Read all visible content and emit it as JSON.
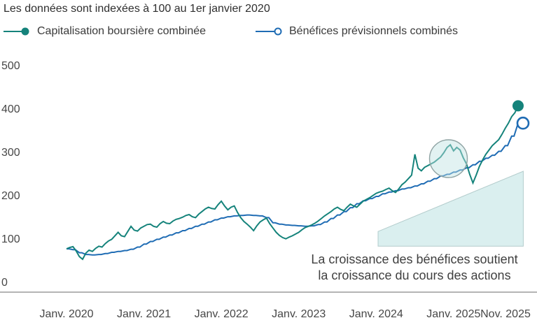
{
  "title": "Les données sont indexées à 100 au 1er janvier 2020",
  "legend": {
    "market_cap": {
      "label": "Capitalisation boursière combinée",
      "marker": "filled-circle"
    },
    "earnings": {
      "label": "Bénéfices prévisionnels combinés",
      "marker": "open-circle"
    }
  },
  "colors": {
    "market_cap": "#15837B",
    "earnings": "#1F6CB4",
    "fill_light": "#DAEFEF",
    "fill_stroke": "#B3CCCC",
    "highlight_fill": "rgba(190,227,227,0.45)",
    "circle_stroke": "#8FA3A3",
    "axis_line": "#B4B4B4",
    "text_dark": "#3A3A3A",
    "axis_text": "#474747"
  },
  "chart_data": {
    "type": "line",
    "title": "Les données sont indexées à 100 au 1er janvier 2020",
    "index_base": 100,
    "index_base_date": "1er janvier 2020",
    "x_axis": {
      "tick_months": [
        0,
        12,
        24,
        36,
        48,
        60,
        70
      ],
      "tick_labels": [
        "Janv. 2020",
        "Janv. 2021",
        "Janv. 2022",
        "Janv. 2023",
        "Janv. 2024",
        "Janv. 2025",
        "Nov. 2025"
      ]
    },
    "y_axis": {
      "ticks": [
        500,
        400,
        300,
        200,
        100,
        0
      ],
      "tick_labels": [
        "500",
        "400",
        "300",
        "200",
        "100",
        "0"
      ],
      "range": [
        0,
        500
      ],
      "gridlines": false
    },
    "legend_position": "top",
    "series": [
      {
        "name": "Capitalisation boursière combinée",
        "key": "market_cap",
        "marker": "filled-circle",
        "x_step_months": 0.5,
        "end_value": 430,
        "values": [
          100,
          103,
          105,
          95,
          82,
          76,
          90,
          97,
          94,
          101,
          106,
          104,
          112,
          118,
          122,
          130,
          138,
          130,
          128,
          140,
          152,
          143,
          141,
          148,
          152,
          156,
          157,
          152,
          150,
          158,
          163,
          159,
          158,
          164,
          168,
          170,
          173,
          177,
          179,
          174,
          172,
          180,
          186,
          192,
          196,
          193,
          192,
          202,
          210,
          199,
          190,
          196,
          199,
          184,
          172,
          163,
          157,
          150,
          142,
          153,
          162,
          167,
          171,
          158,
          148,
          138,
          131,
          126,
          123,
          127,
          130,
          134,
          138,
          144,
          149,
          152,
          155,
          159,
          164,
          170,
          176,
          181,
          186,
          192,
          196,
          191,
          188,
          196,
          203,
          199,
          196,
          203,
          210,
          214,
          218,
          223,
          228,
          231,
          233,
          237,
          240,
          234,
          230,
          238,
          248,
          254,
          262,
          270,
          318,
          286,
          280,
          288,
          292,
          296,
          300,
          306,
          312,
          322,
          334,
          340,
          326,
          334,
          328,
          310,
          296,
          272,
          252,
          270,
          290,
          305,
          318,
          328,
          338,
          345,
          352,
          364,
          378,
          390,
          405,
          414,
          430
        ]
      },
      {
        "name": "Bénéfices prévisionnels combinés",
        "key": "earnings",
        "marker": "open-circle",
        "x_step_months": 1,
        "end_value": 390,
        "values": [
          100,
          98,
          91,
          87,
          86,
          87,
          89,
          92,
          94,
          96,
          99,
          104,
          111,
          117,
          122,
          127,
          132,
          137,
          142,
          147,
          152,
          157,
          162,
          167,
          171,
          174,
          176,
          177,
          178,
          177,
          176,
          172,
          160,
          157,
          155,
          154,
          153,
          152,
          153,
          156,
          162,
          170,
          178,
          186,
          195,
          204,
          211,
          216,
          221,
          227,
          231,
          234,
          238,
          241,
          245,
          250,
          256,
          262,
          268,
          272,
          277,
          282,
          287,
          294,
          302,
          309,
          316,
          325,
          338,
          360,
          390
        ]
      }
    ],
    "annotations": {
      "highlight_circle": {
        "center_month": 59.2,
        "center_value": 308,
        "radius_px": 27
      },
      "growth_triangle": {
        "points_month_value": [
          [
            48.3,
            140
          ],
          [
            70.8,
            279
          ],
          [
            70.8,
            106
          ],
          [
            48.3,
            106
          ]
        ]
      },
      "caption_lines": [
        "La croissance des bénéfices soutient",
        "la croissance du cours des actions"
      ]
    }
  }
}
